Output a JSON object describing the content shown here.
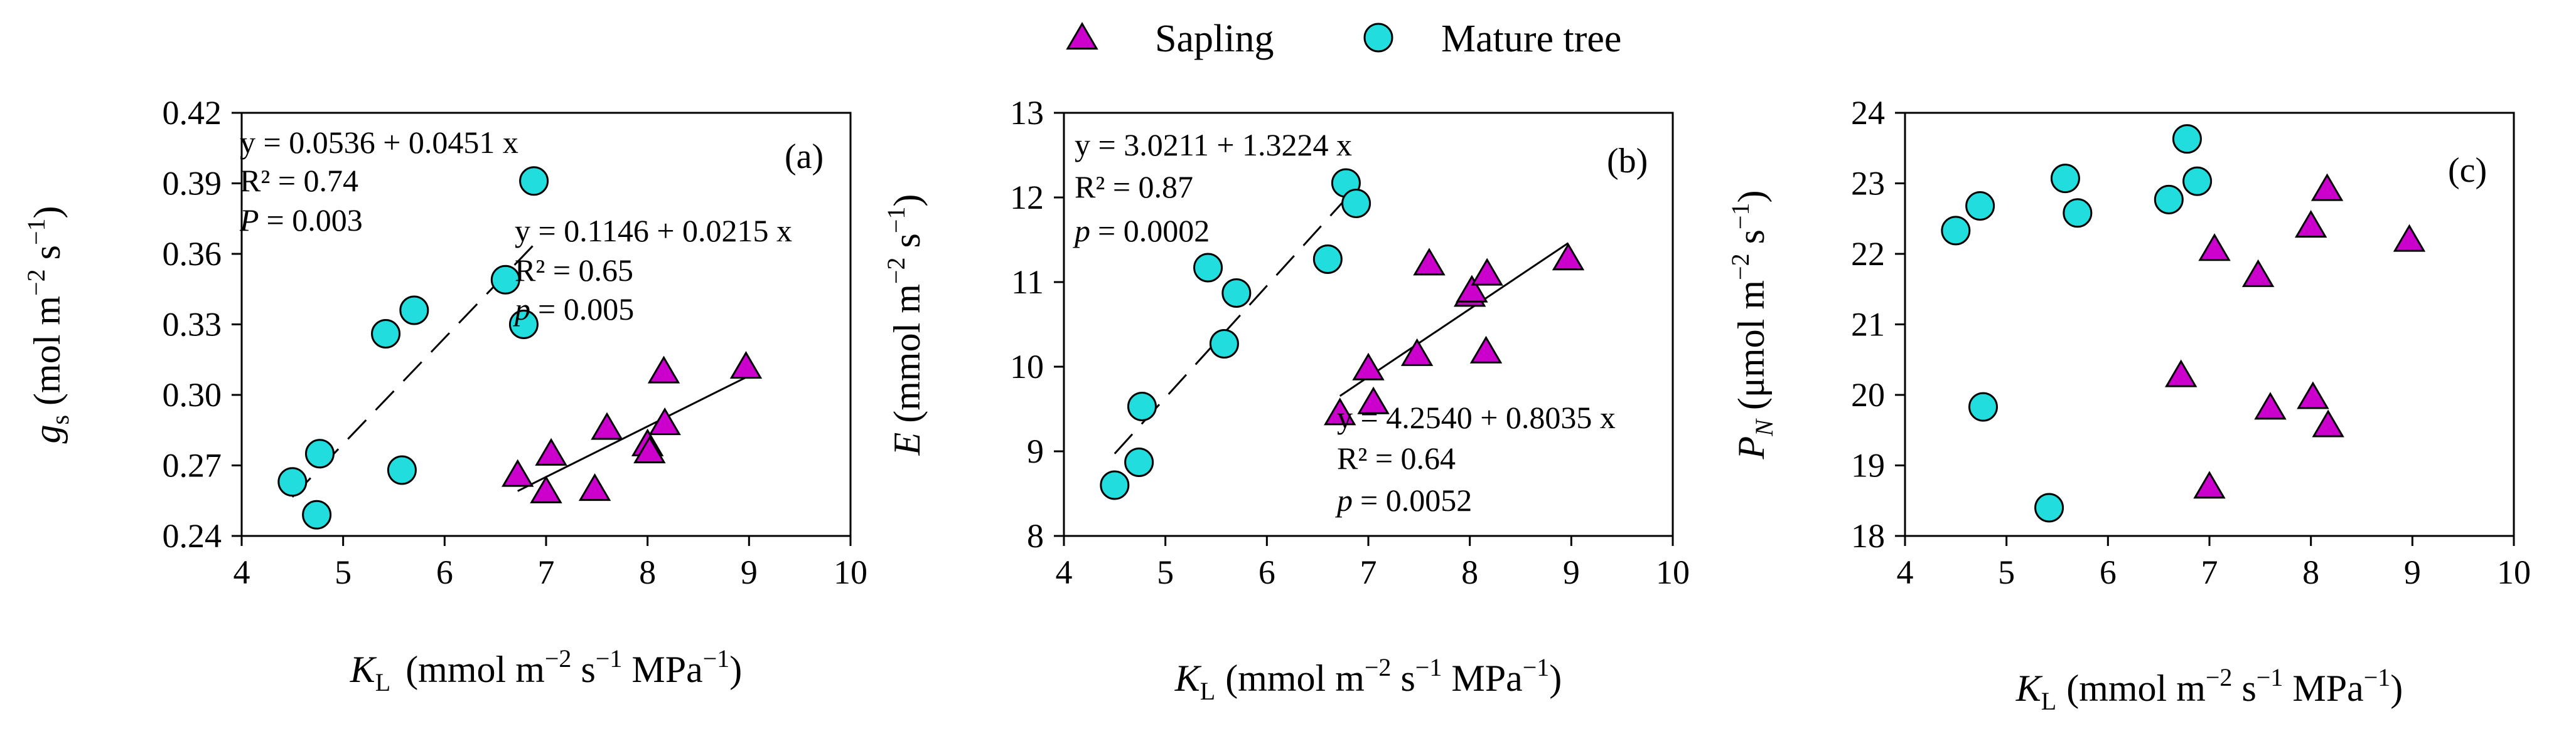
{
  "legend": [
    {
      "label": "Sapling",
      "marker": "triangle",
      "color": "#cc00cc"
    },
    {
      "label": "Mature tree",
      "marker": "circle",
      "color": "#22dddd"
    }
  ],
  "chart_data": [
    {
      "type": "scatter",
      "panel": "(a)",
      "xlabel": "K_L (mmol m^-2 s^-1 MPa^-1)",
      "ylabel": "g_s (mol m^-2 s^-1)",
      "xlim": [
        4,
        10
      ],
      "ylim": [
        0.24,
        0.42
      ],
      "xticks": [
        "4",
        "5",
        "6",
        "7",
        "8",
        "9",
        "10"
      ],
      "yticks": [
        "0.24",
        "0.27",
        "0.30",
        "0.33",
        "0.36",
        "0.39",
        "0.42"
      ],
      "series": [
        {
          "name": "Sapling",
          "x": [
            6.72,
            7.0,
            7.05,
            7.48,
            7.6,
            8.0,
            8.02,
            8.16,
            8.17,
            8.97
          ],
          "y": [
            0.266,
            0.259,
            0.275,
            0.26,
            0.286,
            0.279,
            0.276,
            0.31,
            0.288,
            0.312
          ]
        },
        {
          "name": "Mature tree",
          "x": [
            4.5,
            4.74,
            4.77,
            5.42,
            5.58,
            5.7,
            6.6,
            6.78,
            6.88
          ],
          "y": [
            0.263,
            0.249,
            0.275,
            0.326,
            0.268,
            0.336,
            0.349,
            0.33,
            0.391
          ]
        }
      ],
      "fits": [
        {
          "series": "Mature tree",
          "style": "dashed",
          "x_range": [
            4.5,
            6.88
          ],
          "equation": "y = 0.0536 + 0.0451 x",
          "r2": "0.74",
          "p_label": "P",
          "p_value": "0.003"
        },
        {
          "series": "Sapling",
          "style": "solid",
          "x_range": [
            6.72,
            8.97
          ],
          "equation": "y = 0.1146 + 0.0215 x",
          "r2": "0.65",
          "p_label": "p",
          "p_value": "0.005"
        }
      ]
    },
    {
      "type": "scatter",
      "panel": "(b)",
      "xlabel": "K_L (mmol m^-2 s^-1 MPa^-1)",
      "ylabel": "E (mmol m^-2 s^-1)",
      "xlim": [
        4,
        10
      ],
      "ylim": [
        8,
        13
      ],
      "xticks": [
        "4",
        "5",
        "6",
        "7",
        "8",
        "9",
        "10"
      ],
      "yticks": [
        "8",
        "9",
        "10",
        "11",
        "12",
        "13"
      ],
      "series": [
        {
          "name": "Sapling",
          "x": [
            6.72,
            7.0,
            7.05,
            7.48,
            7.6,
            8.0,
            8.02,
            8.16,
            8.17,
            8.97
          ],
          "y": [
            9.45,
            9.98,
            9.58,
            10.15,
            11.22,
            10.85,
            10.9,
            10.18,
            11.1,
            11.28
          ]
        },
        {
          "name": "Mature tree",
          "x": [
            4.5,
            4.74,
            4.77,
            5.42,
            5.58,
            5.7,
            6.6,
            6.78,
            6.88
          ],
          "y": [
            8.6,
            8.87,
            9.53,
            11.17,
            10.27,
            10.87,
            11.27,
            12.17,
            11.93
          ]
        }
      ],
      "fits": [
        {
          "series": "Mature tree",
          "style": "dashed",
          "x_range": [
            4.5,
            6.88
          ],
          "equation": "y = 3.0211 + 1.3224 x",
          "r2": "0.87",
          "p_label": "p",
          "p_value": "0.0002"
        },
        {
          "series": "Sapling",
          "style": "solid",
          "x_range": [
            6.72,
            8.97
          ],
          "equation": "y = 4.2540 + 0.8035 x",
          "r2": "0.64",
          "p_label": "p",
          "p_value": "0.0052"
        }
      ]
    },
    {
      "type": "scatter",
      "panel": "(c)",
      "xlabel": "K_L (mmol m^-2 s^-1 MPa^-1)",
      "ylabel": "P_N (μmol m^-2 s^-1)",
      "xlim": [
        4,
        10
      ],
      "ylim": [
        18,
        24
      ],
      "xticks": [
        "4",
        "5",
        "6",
        "7",
        "8",
        "9",
        "10"
      ],
      "yticks": [
        "18",
        "19",
        "20",
        "21",
        "22",
        "23",
        "24"
      ],
      "series": [
        {
          "name": "Sapling",
          "x": [
            6.72,
            7.0,
            7.05,
            7.48,
            7.6,
            8.0,
            8.02,
            8.16,
            8.17,
            8.97
          ],
          "y": [
            20.28,
            18.7,
            22.07,
            21.7,
            19.82,
            22.4,
            19.97,
            22.92,
            19.57,
            22.2
          ]
        },
        {
          "name": "Mature tree",
          "x": [
            4.5,
            4.74,
            4.77,
            5.42,
            5.58,
            5.7,
            6.6,
            6.78,
            6.88
          ],
          "y": [
            22.33,
            22.68,
            19.83,
            18.4,
            23.07,
            22.58,
            22.77,
            23.63,
            23.03
          ]
        }
      ],
      "fits": []
    }
  ],
  "labels": {
    "a": {
      "eq1": "y = 0.0536 + 0.0451 x",
      "r2_1": "R² = 0.74",
      "p_1": "= 0.003",
      "p_1_italic": "P",
      "eq2": "y = 0.1146 + 0.0215 x",
      "r2_2": "R² = 0.65",
      "p_2": "= 0.005",
      "p_2_italic": "p"
    },
    "b": {
      "eq1": "y = 3.0211 + 1.3224 x",
      "r2_1": "R² = 0.87",
      "p_1": "= 0.0002",
      "p_1_italic": "p",
      "eq2": "y = 4.2540 + 0.8035 x",
      "r2_2": "R² = 0.64",
      "p_2": "= 0.0052",
      "p_2_italic": "p"
    },
    "xlabel": {
      "sym": "K",
      "sub": "L",
      "unit_mmol": "(mmol m",
      "exp1": "−2",
      "unit_s": " s",
      "exp2": "−1",
      "unit_mpa": " MPa",
      "exp3": "−1",
      "close": ")"
    },
    "ylabel_a": {
      "sym": "g",
      "sub": "s",
      "unit_open": " (mol m",
      "exp1": "−2",
      "unit_s": " s",
      "exp2": "−1",
      "close": ")"
    },
    "ylabel_b": {
      "sym": "E",
      "unit_open": " (mmol m",
      "exp1": "−2",
      "unit_s": " s",
      "exp2": "−1",
      "close": ")"
    },
    "ylabel_c": {
      "sym": "P",
      "sub": "N",
      "unit_open": " (μmol m",
      "exp1": "−2",
      "unit_s": " s",
      "exp2": "−1",
      "close": ")"
    }
  },
  "colors": {
    "sapling": "#cc00cc",
    "mature": "#22dddd",
    "marker_edge": "#000000",
    "axis": "#000000"
  }
}
